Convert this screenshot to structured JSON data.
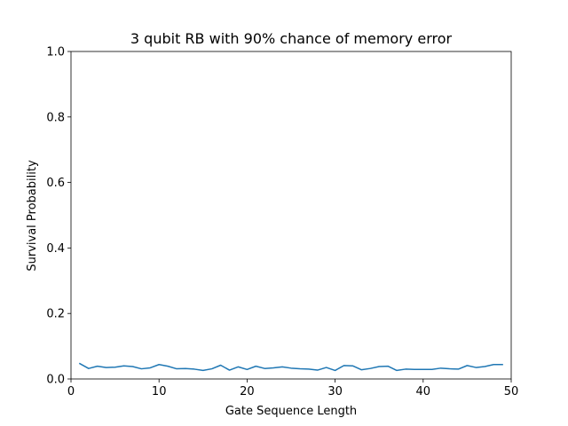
{
  "chart_data": {
    "type": "line",
    "title": "3 qubit RB with 90% chance of memory error",
    "xlabel": "Gate Sequence Length",
    "ylabel": "Survival Probability",
    "xlim": [
      0,
      50
    ],
    "ylim": [
      0.0,
      1.0
    ],
    "xticks": [
      0,
      10,
      20,
      30,
      40,
      50
    ],
    "yticks": [
      0.0,
      0.2,
      0.4,
      0.6,
      0.8,
      1.0
    ],
    "xtick_labels": [
      "0",
      "10",
      "20",
      "30",
      "40",
      "50"
    ],
    "ytick_labels": [
      "0.0",
      "0.2",
      "0.4",
      "0.6",
      "0.8",
      "1.0"
    ],
    "grid": false,
    "series": [
      {
        "color": "#1f77b4",
        "x": [
          1,
          2,
          3,
          4,
          5,
          6,
          7,
          8,
          9,
          10,
          11,
          12,
          13,
          14,
          15,
          16,
          17,
          18,
          19,
          20,
          21,
          22,
          23,
          24,
          25,
          26,
          27,
          28,
          29,
          30,
          31,
          32,
          33,
          34,
          35,
          36,
          37,
          38,
          39,
          40,
          41,
          42,
          43,
          44,
          45,
          46,
          47,
          48,
          49
        ],
        "y": [
          0.047,
          0.032,
          0.039,
          0.035,
          0.036,
          0.04,
          0.038,
          0.031,
          0.034,
          0.044,
          0.039,
          0.031,
          0.032,
          0.03,
          0.026,
          0.031,
          0.042,
          0.027,
          0.037,
          0.029,
          0.039,
          0.032,
          0.034,
          0.037,
          0.033,
          0.031,
          0.03,
          0.027,
          0.035,
          0.026,
          0.041,
          0.04,
          0.028,
          0.032,
          0.038,
          0.039,
          0.026,
          0.03,
          0.029,
          0.029,
          0.029,
          0.033,
          0.031,
          0.03,
          0.041,
          0.035,
          0.038,
          0.044,
          0.044
        ]
      }
    ]
  }
}
